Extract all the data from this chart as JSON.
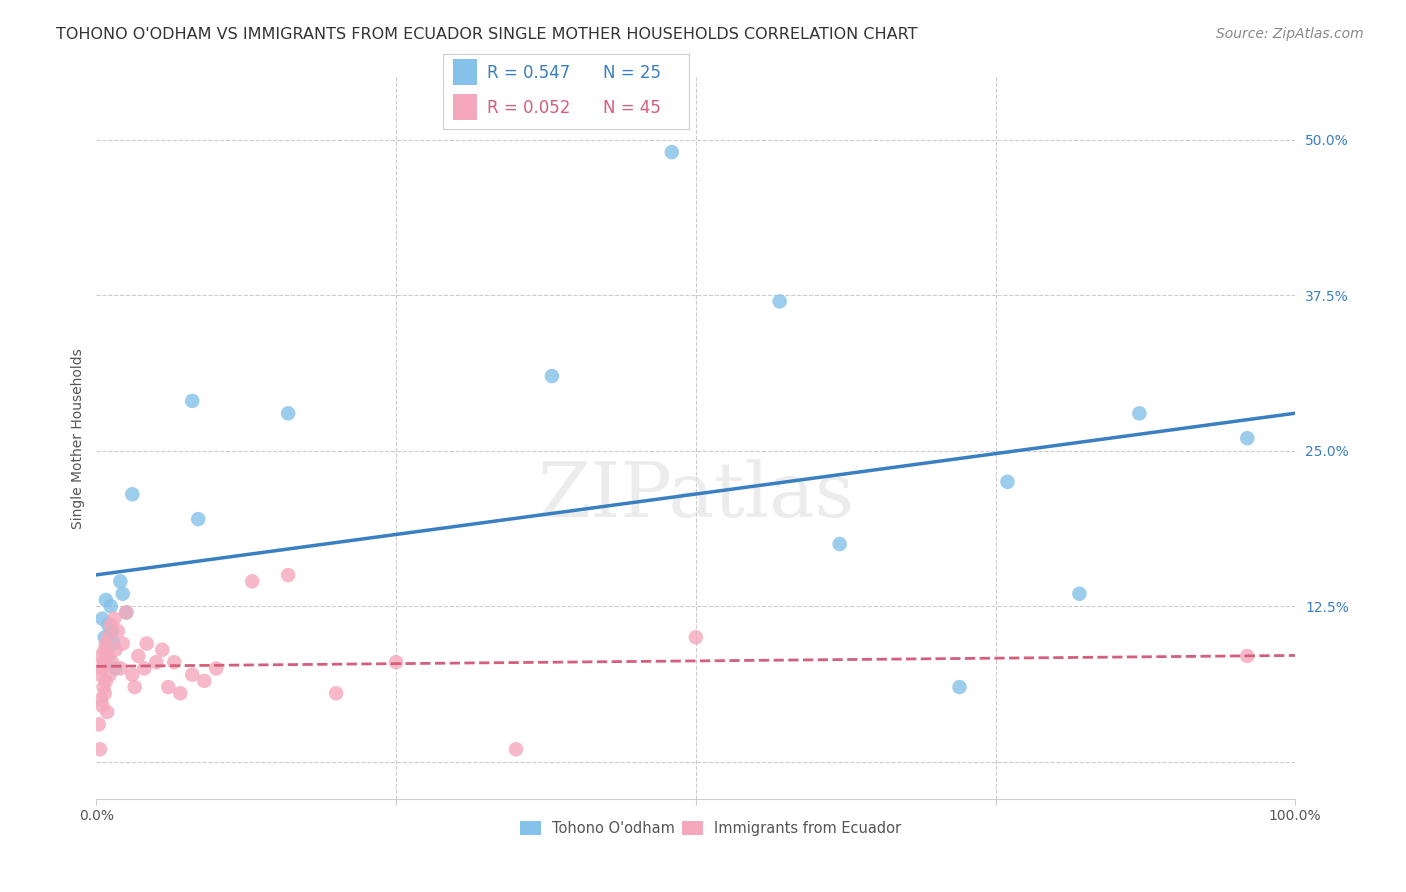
{
  "title": "TOHONO O'ODHAM VS IMMIGRANTS FROM ECUADOR SINGLE MOTHER HOUSEHOLDS CORRELATION CHART",
  "source": "Source: ZipAtlas.com",
  "ylabel": "Single Mother Households",
  "xlim": [
    0.0,
    1.0
  ],
  "ylim": [
    -0.03,
    0.55
  ],
  "y_ticks": [
    0.0,
    0.125,
    0.25,
    0.375,
    0.5
  ],
  "y_tick_labels": [
    "",
    "12.5%",
    "25.0%",
    "37.5%",
    "50.0%"
  ],
  "color_blue": "#85c1e8",
  "color_pink": "#f5a8bc",
  "color_blue_line": "#3a7fc1",
  "color_pink_line": "#d45f7a",
  "background_color": "#ffffff",
  "grid_color": "#cccccc",
  "blue_x": [
    0.005,
    0.007,
    0.008,
    0.009,
    0.01,
    0.012,
    0.013,
    0.014,
    0.016,
    0.02,
    0.022,
    0.025,
    0.03,
    0.08,
    0.085,
    0.16,
    0.38,
    0.48,
    0.57,
    0.62,
    0.72,
    0.76,
    0.82,
    0.87,
    0.96
  ],
  "blue_y": [
    0.115,
    0.1,
    0.13,
    0.085,
    0.11,
    0.125,
    0.105,
    0.095,
    0.075,
    0.145,
    0.135,
    0.12,
    0.215,
    0.29,
    0.195,
    0.28,
    0.31,
    0.49,
    0.37,
    0.175,
    0.06,
    0.225,
    0.135,
    0.28,
    0.26
  ],
  "pink_x": [
    0.002,
    0.003,
    0.003,
    0.004,
    0.004,
    0.005,
    0.005,
    0.006,
    0.006,
    0.007,
    0.007,
    0.008,
    0.008,
    0.009,
    0.01,
    0.01,
    0.011,
    0.012,
    0.013,
    0.015,
    0.016,
    0.018,
    0.02,
    0.022,
    0.025,
    0.03,
    0.032,
    0.035,
    0.04,
    0.042,
    0.05,
    0.055,
    0.06,
    0.065,
    0.07,
    0.08,
    0.09,
    0.1,
    0.13,
    0.16,
    0.2,
    0.25,
    0.35,
    0.5,
    0.96
  ],
  "pink_y": [
    0.03,
    0.01,
    0.07,
    0.05,
    0.085,
    0.045,
    0.075,
    0.06,
    0.08,
    0.055,
    0.09,
    0.065,
    0.095,
    0.04,
    0.085,
    0.1,
    0.07,
    0.11,
    0.08,
    0.115,
    0.09,
    0.105,
    0.075,
    0.095,
    0.12,
    0.07,
    0.06,
    0.085,
    0.075,
    0.095,
    0.08,
    0.09,
    0.06,
    0.08,
    0.055,
    0.07,
    0.065,
    0.075,
    0.145,
    0.15,
    0.055,
    0.08,
    0.01,
    0.1,
    0.085
  ],
  "title_fontsize": 11.5,
  "axis_label_fontsize": 10,
  "tick_fontsize": 10,
  "legend_fontsize": 12,
  "source_fontsize": 10
}
